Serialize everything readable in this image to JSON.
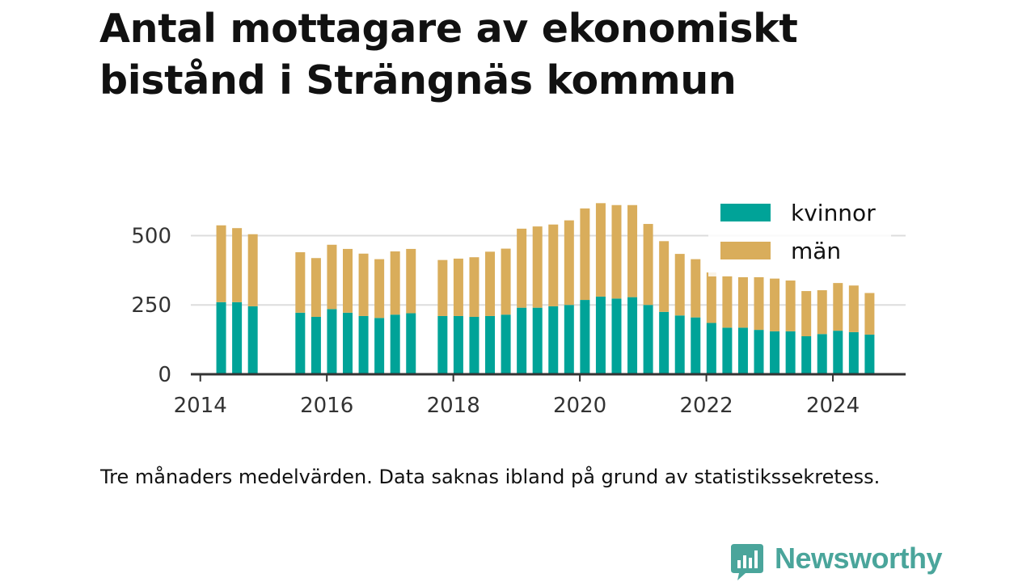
{
  "title": "Antal mottagare av ekonomiskt bistånd i Strängnäs kommun",
  "footnote": "Tre månaders medelvärden. Data saknas ibland på grund av statistikssekretess.",
  "brand": {
    "name": "Newsworthy",
    "icon": "newsworthy-logo-icon",
    "color": "#4aa59b"
  },
  "colors": {
    "kvinnor": "#00a398",
    "man": "#d9ad5b",
    "grid": "#dddddd",
    "axis": "#333333",
    "tick_text": "#333333"
  },
  "chart_data": {
    "type": "bar",
    "stacked": true,
    "title": "Antal mottagare av ekonomiskt bistånd i Strängnäs kommun",
    "xlabel": "",
    "ylabel": "",
    "xlim": [
      2013.85,
      2025.15
    ],
    "ylim": [
      0,
      650
    ],
    "y_ticks": [
      0,
      250,
      500
    ],
    "x_ticks": [
      2014,
      2016,
      2018,
      2020,
      2022,
      2024
    ],
    "grid": true,
    "legend": "top-right",
    "series": [
      {
        "name": "kvinnor",
        "points": [
          [
            2014.33,
            260
          ],
          [
            2014.58,
            260
          ],
          [
            2014.83,
            245
          ],
          [
            2015.58,
            222
          ],
          [
            2015.83,
            207
          ],
          [
            2016.08,
            235
          ],
          [
            2016.33,
            222
          ],
          [
            2016.58,
            210
          ],
          [
            2016.83,
            203
          ],
          [
            2017.08,
            215
          ],
          [
            2017.33,
            220
          ],
          [
            2017.83,
            210
          ],
          [
            2018.08,
            210
          ],
          [
            2018.33,
            207
          ],
          [
            2018.58,
            210
          ],
          [
            2018.83,
            215
          ],
          [
            2019.08,
            240
          ],
          [
            2019.33,
            240
          ],
          [
            2019.58,
            245
          ],
          [
            2019.83,
            250
          ],
          [
            2020.08,
            268
          ],
          [
            2020.33,
            280
          ],
          [
            2020.58,
            273
          ],
          [
            2020.83,
            278
          ],
          [
            2021.08,
            250
          ],
          [
            2021.33,
            225
          ],
          [
            2021.58,
            212
          ],
          [
            2021.83,
            205
          ],
          [
            2022.08,
            185
          ],
          [
            2022.33,
            168
          ],
          [
            2022.58,
            168
          ],
          [
            2022.83,
            160
          ],
          [
            2023.08,
            155
          ],
          [
            2023.33,
            155
          ],
          [
            2023.58,
            137
          ],
          [
            2023.83,
            145
          ],
          [
            2024.08,
            157
          ],
          [
            2024.33,
            152
          ],
          [
            2024.58,
            143
          ]
        ]
      },
      {
        "name": "män",
        "points": [
          [
            2014.33,
            277
          ],
          [
            2014.58,
            267
          ],
          [
            2014.83,
            260
          ],
          [
            2015.58,
            218
          ],
          [
            2015.83,
            212
          ],
          [
            2016.08,
            232
          ],
          [
            2016.33,
            230
          ],
          [
            2016.58,
            225
          ],
          [
            2016.83,
            212
          ],
          [
            2017.08,
            228
          ],
          [
            2017.33,
            232
          ],
          [
            2017.83,
            202
          ],
          [
            2018.08,
            207
          ],
          [
            2018.33,
            215
          ],
          [
            2018.58,
            232
          ],
          [
            2018.83,
            238
          ],
          [
            2019.08,
            285
          ],
          [
            2019.33,
            293
          ],
          [
            2019.58,
            295
          ],
          [
            2019.83,
            305
          ],
          [
            2020.08,
            330
          ],
          [
            2020.33,
            337
          ],
          [
            2020.58,
            337
          ],
          [
            2020.83,
            332
          ],
          [
            2021.08,
            292
          ],
          [
            2021.33,
            255
          ],
          [
            2021.58,
            222
          ],
          [
            2021.83,
            210
          ],
          [
            2022.08,
            182
          ],
          [
            2022.33,
            187
          ],
          [
            2022.58,
            182
          ],
          [
            2022.83,
            190
          ],
          [
            2023.08,
            190
          ],
          [
            2023.33,
            183
          ],
          [
            2023.58,
            163
          ],
          [
            2023.83,
            158
          ],
          [
            2024.08,
            172
          ],
          [
            2024.33,
            168
          ],
          [
            2024.58,
            150
          ]
        ]
      }
    ]
  }
}
